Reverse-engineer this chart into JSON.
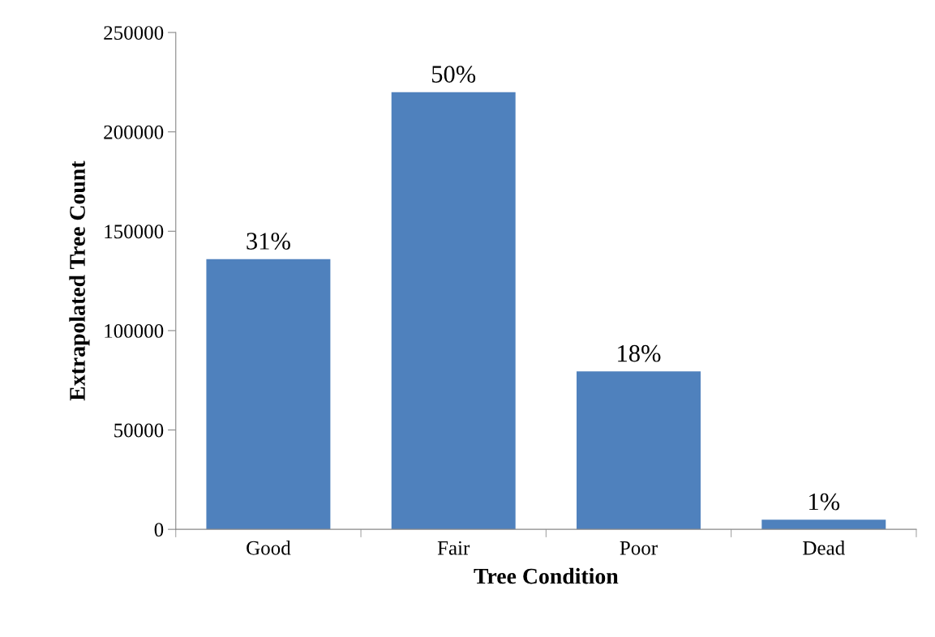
{
  "chart_data": {
    "type": "bar",
    "xlabel": "Tree Condition",
    "ylabel": "Extrapolated Tree Count",
    "categories": [
      "Good",
      "Fair",
      "Poor",
      "Dead"
    ],
    "values": [
      136000,
      220000,
      79500,
      4900
    ],
    "color": "#4f81bd",
    "ylim": [
      0,
      250000
    ],
    "yticks": [
      0,
      50000,
      100000,
      150000,
      200000,
      250000
    ],
    "annotations": [
      {
        "text": "31%",
        "x": "Good",
        "y": 136000
      },
      {
        "text": "50%",
        "x": "Fair",
        "y": 220000
      },
      {
        "text": "18%",
        "x": "Poor",
        "y": 79500
      },
      {
        "text": "1%",
        "x": "Dead",
        "y": 4900
      }
    ],
    "grid": false,
    "legend": false
  }
}
